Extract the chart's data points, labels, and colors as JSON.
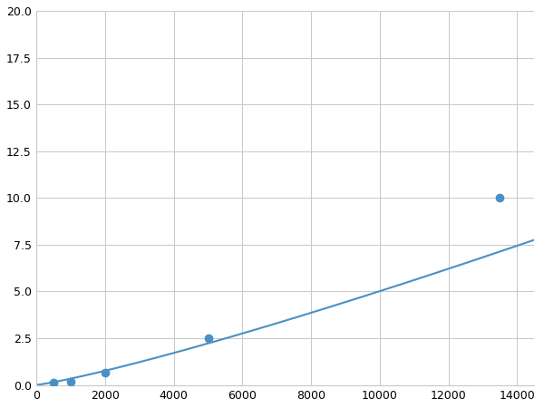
{
  "x_points": [
    125,
    500,
    1000,
    2000,
    5000,
    13500
  ],
  "y_points": [
    0.05,
    0.12,
    0.18,
    0.65,
    2.5,
    10.0
  ],
  "line_color": "#4a90c4",
  "marker_color": "#4a90c4",
  "marker_size": 6,
  "line_width": 1.5,
  "xlim": [
    0,
    14500
  ],
  "ylim": [
    0,
    20
  ],
  "xticks": [
    0,
    2000,
    4000,
    6000,
    8000,
    10000,
    12000,
    14000
  ],
  "yticks": [
    0.0,
    2.5,
    5.0,
    7.5,
    10.0,
    12.5,
    15.0,
    17.5,
    20.0
  ],
  "grid_color": "#c8c8c8",
  "background_color": "#ffffff",
  "fig_background": "#ffffff",
  "marker_indices": [
    1,
    2,
    3,
    4,
    5
  ]
}
